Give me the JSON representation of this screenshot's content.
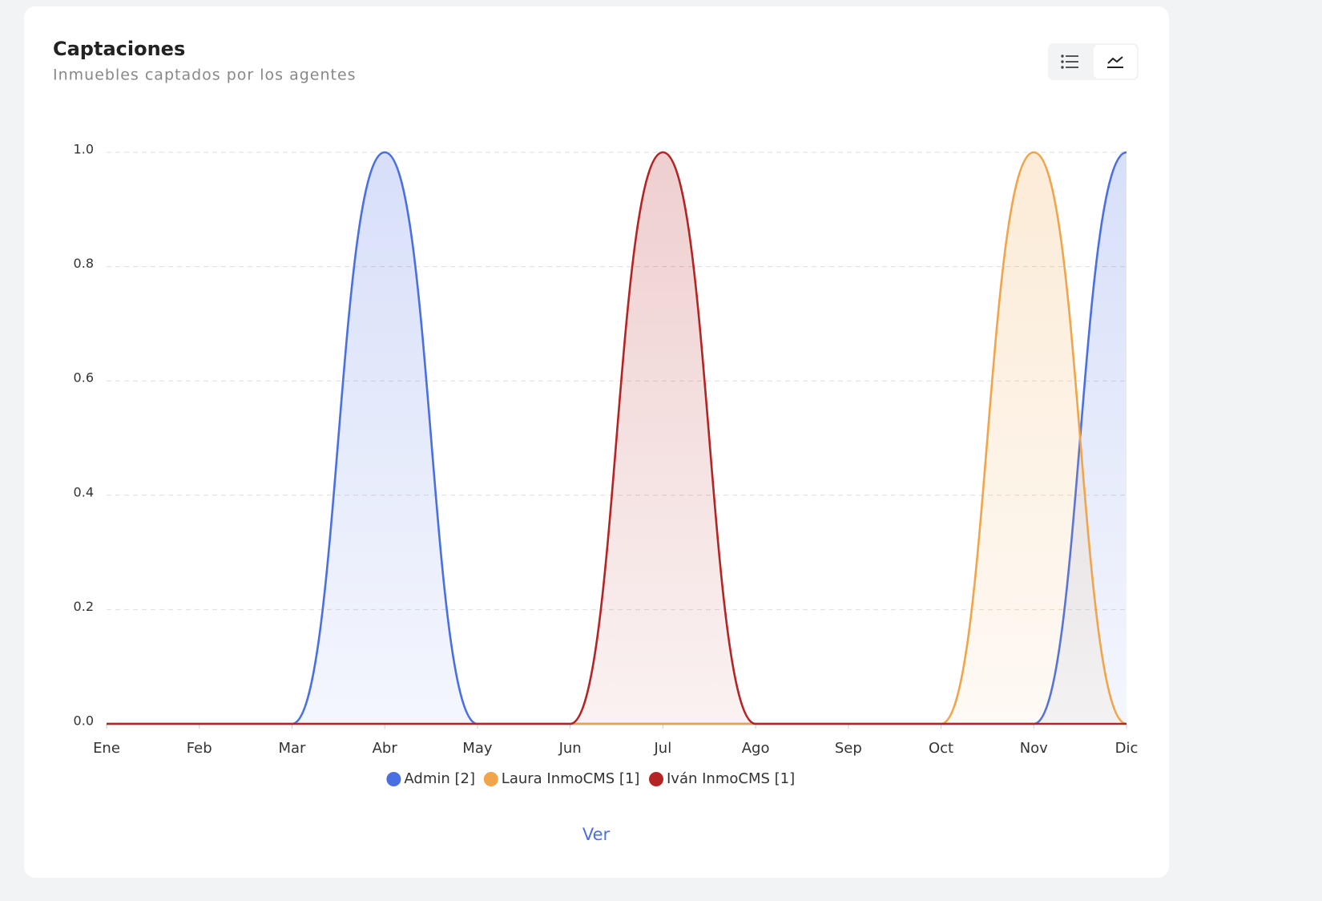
{
  "chart_data": {
    "type": "area",
    "title": "Captaciones",
    "subtitle": "Inmuebles captados por los agentes",
    "categories": [
      "Ene",
      "Feb",
      "Mar",
      "Abr",
      "May",
      "Jun",
      "Jul",
      "Ago",
      "Sep",
      "Oct",
      "Nov",
      "Dic"
    ],
    "series": [
      {
        "name": "Admin [2]",
        "color": "#4a6fe3",
        "values": [
          0,
          0,
          0,
          1,
          0,
          0,
          0,
          0,
          0,
          0,
          0,
          1
        ]
      },
      {
        "name": "Laura InmoCMS [1]",
        "color": "#f0a54a",
        "values": [
          0,
          0,
          0,
          0,
          0,
          0,
          0,
          0,
          0,
          0,
          1,
          0
        ]
      },
      {
        "name": "Iván InmoCMS [1]",
        "color": "#b52424",
        "values": [
          0,
          0,
          0,
          0,
          0,
          0,
          1,
          0,
          0,
          0,
          0,
          0
        ]
      }
    ],
    "ylim": [
      0,
      1
    ],
    "yticks": [
      {
        "value": 0,
        "label": "0.0"
      },
      {
        "value": 0.2,
        "label": "0.2"
      },
      {
        "value": 0.4,
        "label": "0.4"
      },
      {
        "value": 0.6,
        "label": "0.6"
      },
      {
        "value": 0.8,
        "label": "0.8"
      },
      {
        "value": 1,
        "label": "1.0"
      }
    ],
    "grid": true,
    "legend": "bottom",
    "link": "Ver"
  }
}
